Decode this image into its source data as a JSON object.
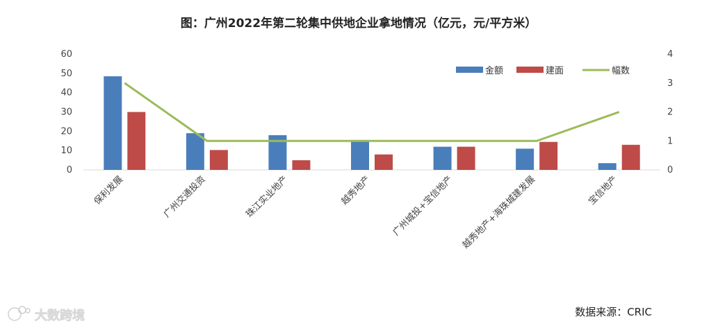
{
  "chart_data": {
    "type": "bar",
    "title": "图：广州2022年第二轮集中供地企业拿地情况（亿元，元/平方米）",
    "categories": [
      "保利发展",
      "广州交通投资",
      "珠江实业地产",
      "越秀地产",
      "广州城投+宝信地产",
      "越秀地产+海珠城建发展",
      "宝信地产"
    ],
    "series": [
      {
        "name": "金额",
        "type": "bar",
        "axis": "left",
        "color": "#4a7ebb",
        "values": [
          48.5,
          19,
          18,
          15.5,
          12,
          11,
          3.5
        ]
      },
      {
        "name": "建面",
        "type": "bar",
        "axis": "left",
        "color": "#be4b48",
        "values": [
          30,
          10.3,
          5,
          8,
          12,
          14.5,
          13
        ]
      },
      {
        "name": "幅数",
        "type": "line",
        "axis": "right",
        "color": "#9bbb59",
        "values": [
          3,
          1,
          1,
          1,
          1,
          1,
          2
        ]
      }
    ],
    "y_left": {
      "min": 0,
      "max": 60,
      "ticks": [
        "0",
        "10",
        "20",
        "30",
        "40",
        "50",
        "60"
      ]
    },
    "y_right": {
      "min": 0,
      "max": 4,
      "ticks": [
        "0",
        "1",
        "2",
        "3",
        "4"
      ]
    },
    "legend": "top-right",
    "grid": false,
    "source": "数据来源：CRIC"
  },
  "watermark": {
    "text": "大数跨境"
  }
}
